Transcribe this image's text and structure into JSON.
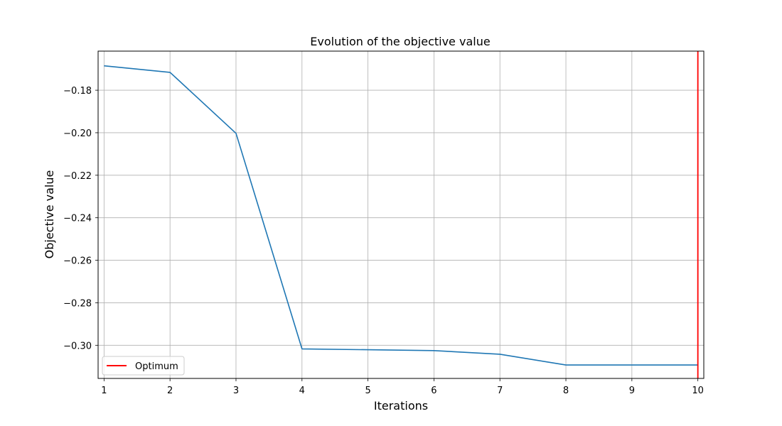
{
  "chart_data": {
    "type": "line",
    "title": "Evolution of the objective value",
    "xlabel": "Iterations",
    "ylabel": "Objective value",
    "x": [
      1,
      2,
      3,
      4,
      5,
      6,
      7,
      8,
      9,
      10
    ],
    "xticks": [
      "1",
      "2",
      "3",
      "4",
      "5",
      "6",
      "7",
      "8",
      "9",
      "10"
    ],
    "yticks": [
      "−0.30",
      "−0.28",
      "−0.26",
      "−0.24",
      "−0.22",
      "−0.20",
      "−0.18"
    ],
    "ytick_values": [
      -0.3,
      -0.28,
      -0.26,
      -0.24,
      -0.22,
      -0.2,
      -0.18
    ],
    "xlim": [
      0.91,
      10.09
    ],
    "ylim": [
      -0.3156,
      -0.1616
    ],
    "grid": true,
    "series": [
      {
        "values": [
          -0.1685,
          -0.1716,
          -0.2003,
          -0.3017,
          -0.3021,
          -0.3025,
          -0.3042,
          -0.3093,
          -0.3093,
          -0.3093
        ],
        "color": "#1f77b4"
      }
    ],
    "vlines": [
      {
        "name": "Optimum",
        "x": 10,
        "color": "#ff0000"
      }
    ],
    "legend": {
      "position": "lower-left",
      "entries": [
        {
          "label": "Optimum",
          "color": "#ff0000"
        }
      ]
    }
  }
}
